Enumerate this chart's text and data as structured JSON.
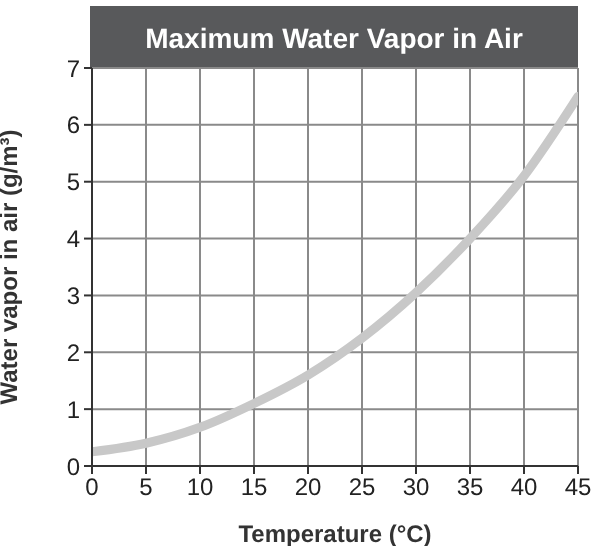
{
  "chart_data": {
    "type": "line",
    "title": "Maximum Water Vapor in Air",
    "xlabel": "Temperature (°C)",
    "ylabel": "Water vapor in air (g/m³)",
    "x": [
      0,
      5,
      10,
      15,
      20,
      25,
      30,
      35,
      40,
      45
    ],
    "series": [
      {
        "color": "#c8c8c8",
        "values": [
          0.25,
          0.4,
          0.68,
          1.1,
          1.6,
          2.25,
          3.05,
          4.0,
          5.1,
          6.5
        ]
      }
    ],
    "xlim": [
      0,
      45
    ],
    "xticks": [
      0,
      5,
      10,
      15,
      20,
      25,
      30,
      35,
      40,
      45
    ],
    "ylim": [
      0,
      7
    ],
    "yticks": [
      0,
      1,
      2,
      3,
      4,
      5,
      6,
      7
    ],
    "grid": true,
    "marker": "none",
    "line_style": "solid"
  }
}
